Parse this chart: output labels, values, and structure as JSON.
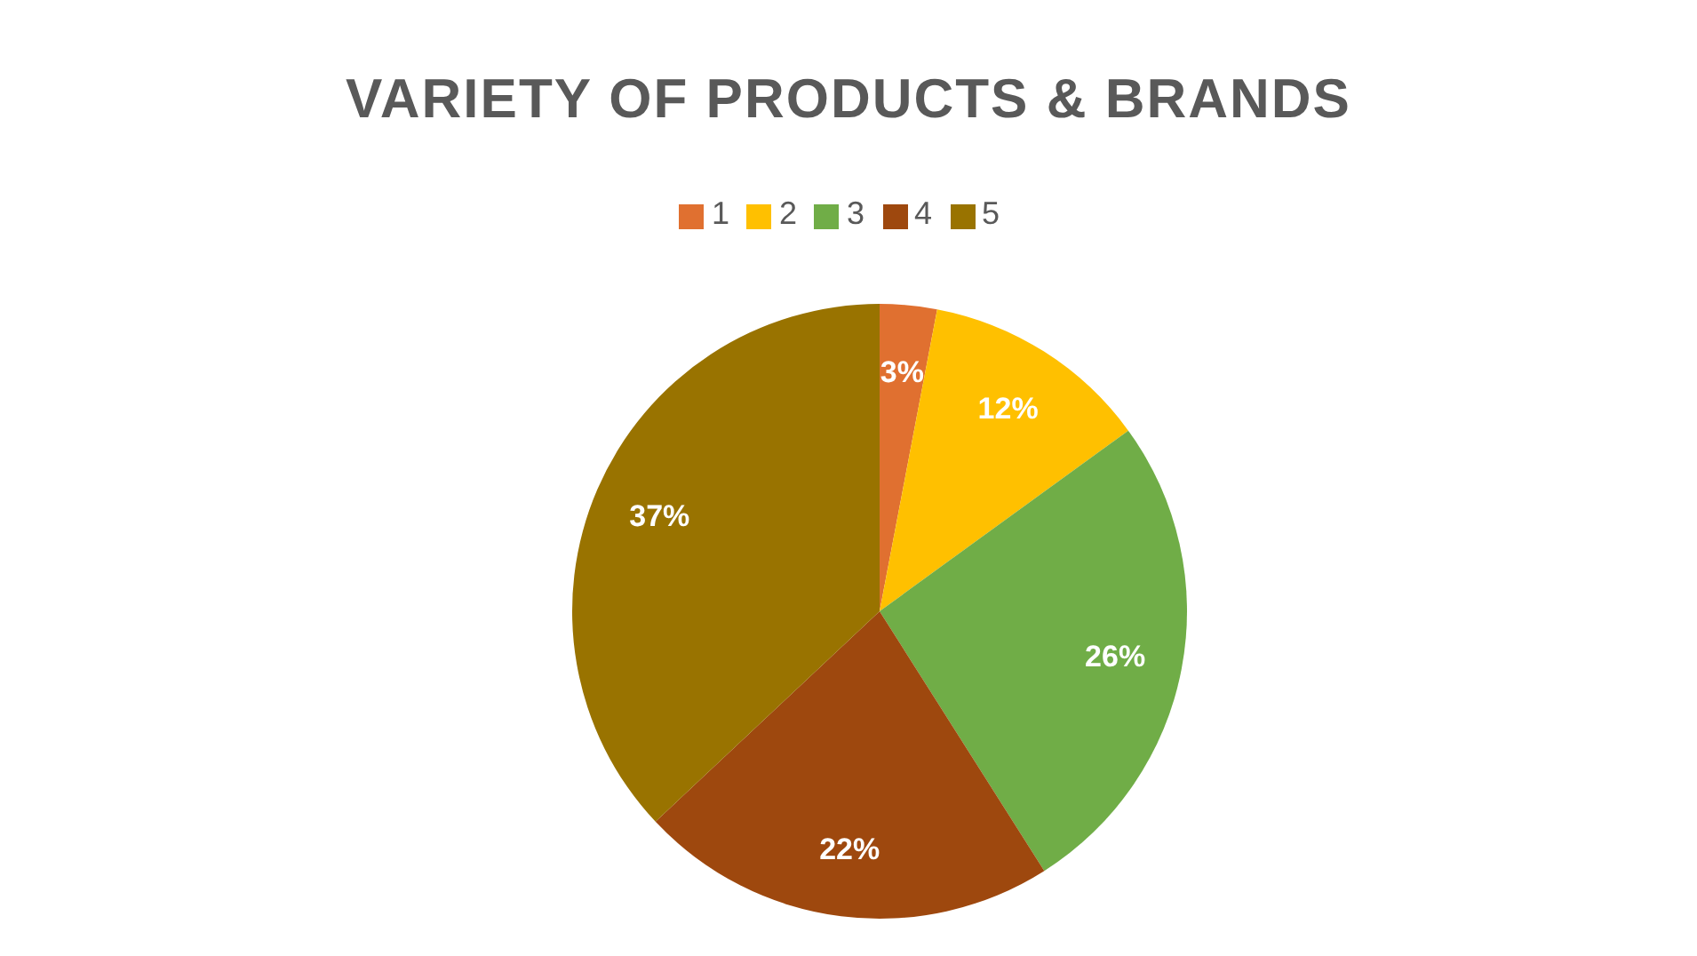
{
  "chart_data": {
    "type": "pie",
    "title": "VARIETY OF PRODUCTS & BRANDS",
    "categories": [
      "1",
      "2",
      "3",
      "4",
      "5"
    ],
    "values": [
      3,
      12,
      26,
      22,
      37
    ],
    "colors": [
      "#e07030",
      "#ffc000",
      "#70ad47",
      "#9e480e",
      "#997300"
    ],
    "value_labels": [
      "3%",
      "12%",
      "26%",
      "22%",
      "37%"
    ],
    "legend": "top"
  }
}
